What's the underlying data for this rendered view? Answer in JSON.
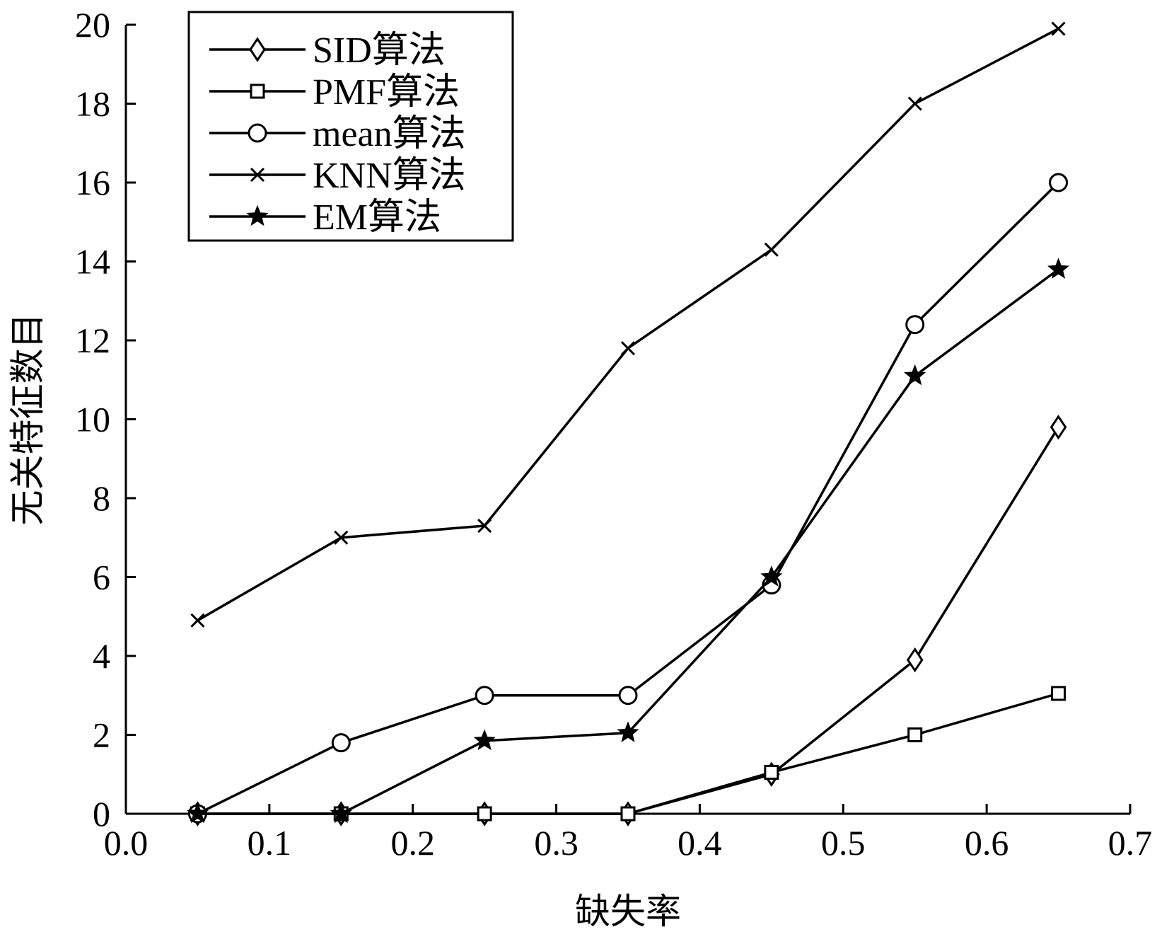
{
  "chart_data": {
    "type": "line",
    "title": "",
    "xlabel": "缺失率",
    "ylabel": "无关特征数目",
    "xlim": [
      0.0,
      0.7
    ],
    "ylim": [
      0,
      20
    ],
    "xticks": [
      "0.0",
      "0.1",
      "0.2",
      "0.3",
      "0.4",
      "0.5",
      "0.6",
      "0.7"
    ],
    "yticks": [
      "0",
      "2",
      "4",
      "6",
      "8",
      "10",
      "12",
      "14",
      "16",
      "18",
      "20"
    ],
    "grid": false,
    "legend_position": "top-left",
    "x": [
      0.05,
      0.15,
      0.25,
      0.35,
      0.45,
      0.55,
      0.65
    ],
    "series": [
      {
        "name": "SID算法",
        "marker": "diamond",
        "values": [
          0,
          0,
          0,
          0,
          1.0,
          3.9,
          9.8
        ]
      },
      {
        "name": "PMF算法",
        "marker": "square",
        "values": [
          0,
          0,
          0,
          0,
          1.05,
          2.0,
          3.05
        ]
      },
      {
        "name": "mean算法",
        "marker": "circle",
        "values": [
          0,
          1.8,
          3.0,
          3.0,
          5.8,
          12.4,
          16.0
        ]
      },
      {
        "name": "KNN算法",
        "marker": "x",
        "values": [
          4.9,
          7.0,
          7.3,
          11.8,
          14.3,
          18.0,
          19.9
        ]
      },
      {
        "name": "EM算法",
        "marker": "star",
        "values": [
          0,
          0,
          1.85,
          2.05,
          6.0,
          11.1,
          13.8
        ]
      }
    ]
  }
}
